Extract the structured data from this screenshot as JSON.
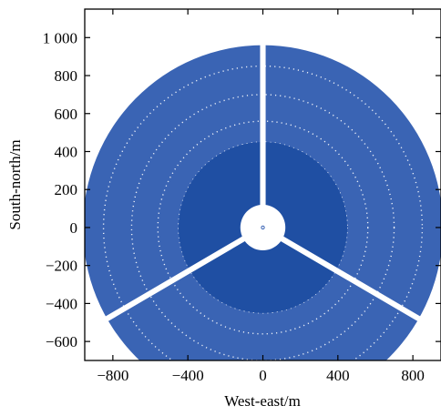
{
  "chart_data": {
    "type": "scatter",
    "title": "",
    "xlabel": "West-east/m",
    "ylabel": "South-north/m",
    "xlim": [
      -950,
      950
    ],
    "ylim": [
      -700,
      1150
    ],
    "xticks": [
      {
        "value": -800,
        "label": "−800"
      },
      {
        "value": -400,
        "label": "−400"
      },
      {
        "value": 0,
        "label": "0"
      },
      {
        "value": 400,
        "label": "400"
      },
      {
        "value": 800,
        "label": "800"
      }
    ],
    "yticks": [
      {
        "value": -600,
        "label": "−600"
      },
      {
        "value": -400,
        "label": "−400"
      },
      {
        "value": -200,
        "label": "−200"
      },
      {
        "value": 0,
        "label": "0"
      },
      {
        "value": 200,
        "label": "200"
      },
      {
        "value": 400,
        "label": "400"
      },
      {
        "value": 600,
        "label": "600"
      },
      {
        "value": 800,
        "label": "800"
      },
      {
        "value": 1000,
        "label": "1 000"
      }
    ],
    "grid": false,
    "field": {
      "center": [
        0,
        0
      ],
      "center_marker_radius": 8,
      "inner_hole_radius": 120,
      "dense_zone_radius": 450,
      "outer_radius": 960,
      "ring_boundaries": [
        450,
        560,
        700,
        850
      ],
      "corridor_angles_deg": [
        90,
        210,
        330
      ],
      "corridor_width": 20
    },
    "colors": {
      "heliostat_fill": "#1f4fa3",
      "heliostat_outer": "#3a64b4",
      "center_marker": "#3a64b4",
      "background": "#ffffff",
      "axis": "#000000"
    }
  }
}
